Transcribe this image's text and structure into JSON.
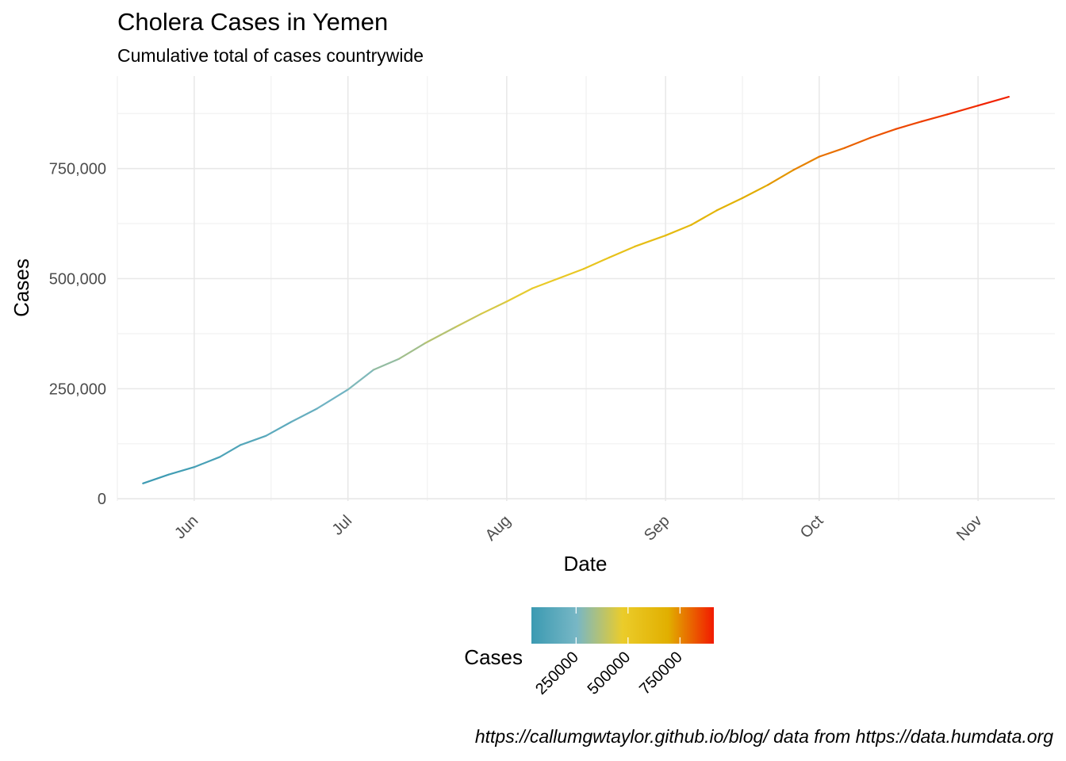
{
  "title": "Cholera Cases in Yemen",
  "subtitle": "Cumulative total of cases countrywide",
  "caption": "https://callumgwtaylor.github.io/blog/ data from https://data.humdata.org",
  "chart_data": {
    "type": "line",
    "xlabel": "Date",
    "ylabel": "Cases",
    "x_ticks": [
      "Jun",
      "Jul",
      "Aug",
      "Sep",
      "Oct",
      "Nov"
    ],
    "x_tick_dates": [
      "2017-06-01",
      "2017-07-01",
      "2017-08-01",
      "2017-09-01",
      "2017-10-01",
      "2017-11-01"
    ],
    "xlim": [
      "2017-05-17",
      "2017-11-16"
    ],
    "y_ticks": [
      0,
      250000,
      500000,
      750000
    ],
    "y_tick_labels": [
      "0",
      "250,000",
      "500,000",
      "750,000"
    ],
    "ylim": [
      -5000,
      960000
    ],
    "grid": true,
    "color_scale": [
      "#3B9AB2",
      "#78B7C5",
      "#EBCC2A",
      "#E1AF00",
      "#F21A00"
    ],
    "legend": {
      "title": "Cases",
      "position": "bottom",
      "ticks": [
        250000,
        500000,
        750000
      ],
      "tick_labels": [
        "250000",
        "500000",
        "750000"
      ],
      "range": [
        35000,
        913000
      ]
    },
    "x": [
      "2017-05-22",
      "2017-05-27",
      "2017-06-01",
      "2017-06-06",
      "2017-06-10",
      "2017-06-15",
      "2017-06-20",
      "2017-06-25",
      "2017-07-01",
      "2017-07-06",
      "2017-07-11",
      "2017-07-16",
      "2017-07-22",
      "2017-07-27",
      "2017-08-01",
      "2017-08-06",
      "2017-08-11",
      "2017-08-16",
      "2017-08-21",
      "2017-08-26",
      "2017-09-01",
      "2017-09-06",
      "2017-09-11",
      "2017-09-16",
      "2017-09-21",
      "2017-09-26",
      "2017-10-01",
      "2017-10-06",
      "2017-10-11",
      "2017-10-16",
      "2017-10-21",
      "2017-10-26",
      "2017-11-01",
      "2017-11-07"
    ],
    "y": [
      35000,
      55000,
      72000,
      95000,
      122000,
      143000,
      175000,
      205000,
      248000,
      293000,
      318000,
      353000,
      390000,
      420000,
      448000,
      478000,
      500000,
      522000,
      548000,
      573000,
      598000,
      622000,
      655000,
      683000,
      713000,
      747000,
      777000,
      797000,
      820000,
      840000,
      857000,
      873000,
      893000,
      913000
    ]
  }
}
